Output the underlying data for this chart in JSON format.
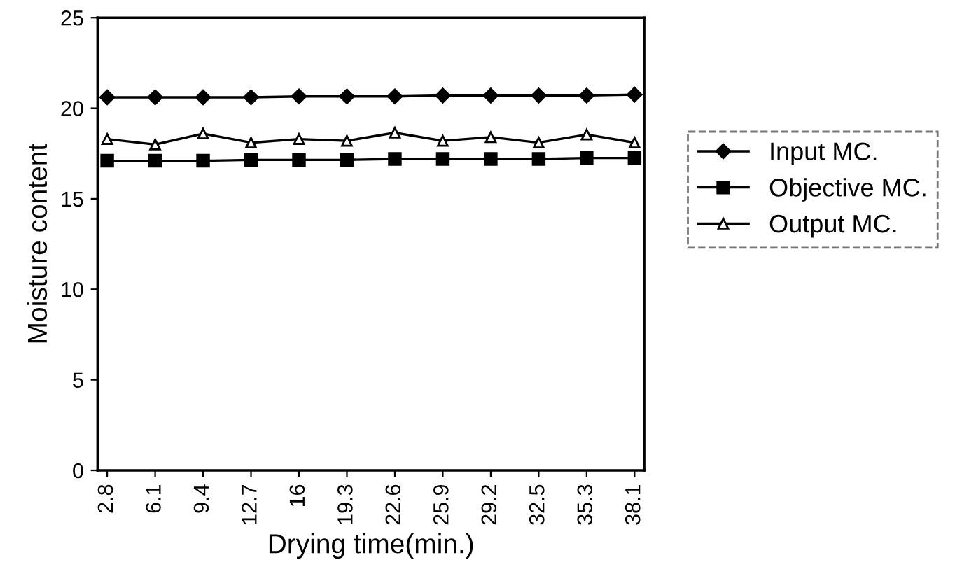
{
  "chart_data": {
    "type": "line",
    "xlabel": "Drying time(min.)",
    "ylabel": "Moisture content",
    "categories": [
      "2.8",
      "6.1",
      "9.4",
      "12.7",
      "16",
      "19.3",
      "22.6",
      "25.9",
      "29.2",
      "32.5",
      "35.3",
      "38.1"
    ],
    "series": [
      {
        "name": "Input MC.",
        "color": "#000000",
        "marker": "diamond",
        "values": [
          20.6,
          20.6,
          20.6,
          20.6,
          20.65,
          20.65,
          20.65,
          20.7,
          20.7,
          20.7,
          20.7,
          20.75
        ]
      },
      {
        "name": "Objective MC.",
        "color": "#000000",
        "marker": "square",
        "values": [
          17.1,
          17.1,
          17.1,
          17.15,
          17.15,
          17.15,
          17.2,
          17.2,
          17.2,
          17.2,
          17.25,
          17.25
        ]
      },
      {
        "name": "Output MC.",
        "color": "#000000",
        "marker": "triangle",
        "values": [
          18.3,
          18.0,
          18.6,
          18.1,
          18.3,
          18.2,
          18.65,
          18.2,
          18.4,
          18.1,
          18.55,
          18.1
        ]
      }
    ],
    "ylim": [
      0,
      25
    ],
    "yticks": [
      0,
      5,
      10,
      15,
      20,
      25
    ],
    "grid": false,
    "legend": "right",
    "line_style": "solid"
  }
}
